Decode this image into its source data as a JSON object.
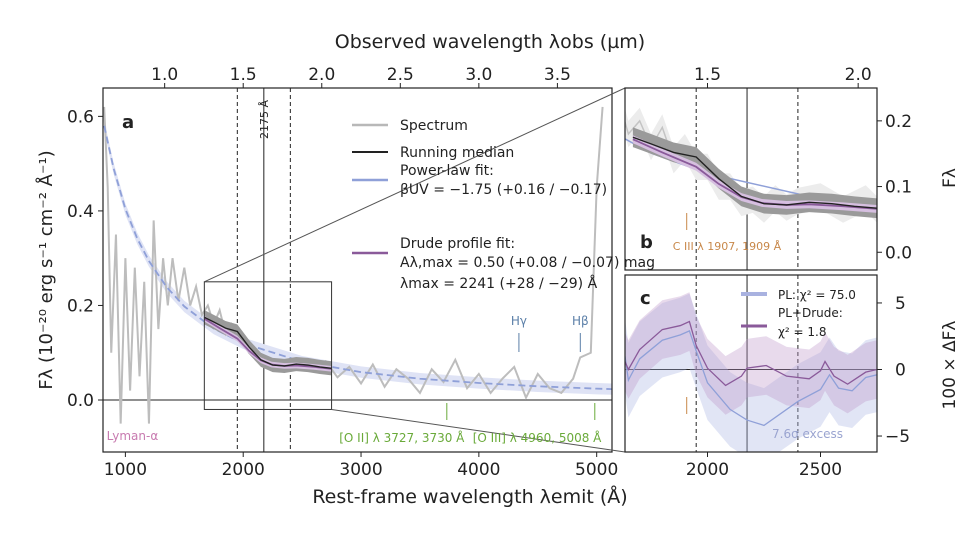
{
  "chart_data": [
    {
      "panel": "a",
      "type": "line",
      "xlabel": "Rest-frame wavelength λemit (Å)",
      "ylabel": "Fλ (10⁻²⁰ erg s⁻¹ cm⁻² Å⁻¹)",
      "top_xlabel": "Observed wavelength λobs (µm)",
      "xlim": [
        810,
        5130
      ],
      "ylim": [
        -0.11,
        0.66
      ],
      "xticks": [
        1000,
        2000,
        3000,
        4000,
        5000
      ],
      "yticks": [
        0.0,
        0.2,
        0.4,
        0.6
      ],
      "ytick_labels": [
        "0.0",
        "0.2",
        "0.4",
        "0.6"
      ],
      "top_xticks_um": [
        1.0,
        1.5,
        2.0,
        2.5,
        3.0,
        3.5
      ],
      "top_xtick_labels": [
        "1.0",
        "1.5",
        "2.0",
        "2.5",
        "3.0",
        "3.5"
      ],
      "obs_per_rest_factor": 7.5,
      "vlines": [
        {
          "x": 1950,
          "style": "dashed"
        },
        {
          "x": 2175,
          "style": "solid",
          "label": "2175 Å"
        },
        {
          "x": 2400,
          "style": "dashed"
        }
      ],
      "zoom_box": {
        "x": [
          1670,
          2750
        ],
        "y": [
          -0.02,
          0.25
        ]
      },
      "legend": {
        "placement": "top-center",
        "entries": [
          {
            "label": "Spectrum",
            "color": "#b8b8b8"
          },
          {
            "label": "Running median",
            "color": "#222222"
          },
          {
            "label": "Power-law fit:",
            "label2": "βUV = −1.75 (+0.16 / −0.17)",
            "color": "#8fa0d8"
          },
          {
            "label": "Drude profile fit:",
            "label2": "Aλ,max = 0.50 (+0.08 / −0.07) mag",
            "label3": "λmax = 2241 (+28 / −29) Å",
            "color": "#8a5a9a"
          }
        ]
      },
      "annotations": [
        {
          "text": "Lyman-α",
          "x": 1060,
          "color": "#c87bb0"
        },
        {
          "text": "Hγ",
          "x": 4340,
          "color": "#5b7fa8"
        },
        {
          "text": "Hβ",
          "x": 4861,
          "color": "#5b7fa8"
        },
        {
          "text": "[O II] λ 3727, 3730 Å",
          "x": 3728,
          "color": "#6aaa3a"
        },
        {
          "text": "[O III] λ 4960, 5008 Å",
          "x": 4984,
          "color": "#6aaa3a"
        }
      ],
      "spectrum": [
        [
          820,
          0.62
        ],
        [
          850,
          0.45
        ],
        [
          880,
          0.1
        ],
        [
          920,
          0.35
        ],
        [
          960,
          -0.05
        ],
        [
          1000,
          0.3
        ],
        [
          1040,
          0.02
        ],
        [
          1080,
          0.28
        ],
        [
          1120,
          0.05
        ],
        [
          1160,
          0.25
        ],
        [
          1200,
          -0.05
        ],
        [
          1240,
          0.38
        ],
        [
          1280,
          0.15
        ],
        [
          1320,
          0.3
        ],
        [
          1360,
          0.2
        ],
        [
          1400,
          0.3
        ],
        [
          1450,
          0.21
        ],
        [
          1500,
          0.28
        ],
        [
          1550,
          0.2
        ],
        [
          1600,
          0.24
        ],
        [
          1650,
          0.18
        ],
        [
          1700,
          0.2
        ],
        [
          1750,
          0.16
        ],
        [
          1800,
          0.19
        ],
        [
          1850,
          0.14
        ],
        [
          1900,
          0.16
        ],
        [
          1950,
          0.13
        ],
        [
          2000,
          0.13
        ],
        [
          2050,
          0.1
        ],
        [
          2100,
          0.1
        ],
        [
          2150,
          0.075
        ],
        [
          2200,
          0.08
        ],
        [
          2250,
          0.065
        ],
        [
          2300,
          0.082
        ],
        [
          2350,
          0.068
        ],
        [
          2400,
          0.078
        ],
        [
          2500,
          0.085
        ],
        [
          2600,
          0.065
        ],
        [
          2700,
          0.082
        ],
        [
          2800,
          0.048
        ],
        [
          2900,
          0.07
        ],
        [
          3000,
          0.035
        ],
        [
          3100,
          0.075
        ],
        [
          3200,
          0.028
        ],
        [
          3300,
          0.065
        ],
        [
          3400,
          0.045
        ],
        [
          3500,
          0.015
        ],
        [
          3600,
          0.065
        ],
        [
          3700,
          0.038
        ],
        [
          3800,
          0.085
        ],
        [
          3900,
          0.025
        ],
        [
          4000,
          0.055
        ],
        [
          4100,
          0.015
        ],
        [
          4200,
          0.045
        ],
        [
          4300,
          0.07
        ],
        [
          4400,
          0.005
        ],
        [
          4500,
          0.055
        ],
        [
          4600,
          0.025
        ],
        [
          4700,
          0.015
        ],
        [
          4800,
          0.045
        ],
        [
          4860,
          0.09
        ],
        [
          4950,
          0.1
        ],
        [
          5000,
          0.45
        ],
        [
          5050,
          0.62
        ]
      ],
      "running_median": [
        [
          1670,
          0.175
        ],
        [
          1750,
          0.165
        ],
        [
          1850,
          0.152
        ],
        [
          1950,
          0.145
        ],
        [
          2050,
          0.112
        ],
        [
          2150,
          0.085
        ],
        [
          2250,
          0.074
        ],
        [
          2350,
          0.072
        ],
        [
          2450,
          0.076
        ],
        [
          2550,
          0.074
        ],
        [
          2650,
          0.07
        ],
        [
          2750,
          0.067
        ]
      ],
      "power_law_fit": [
        [
          820,
          0.58
        ],
        [
          900,
          0.49
        ],
        [
          1000,
          0.404
        ],
        [
          1100,
          0.342
        ],
        [
          1200,
          0.294
        ],
        [
          1350,
          0.239
        ],
        [
          1500,
          0.198
        ],
        [
          1750,
          0.151
        ],
        [
          2000,
          0.12
        ],
        [
          2500,
          0.081
        ],
        [
          3000,
          0.059
        ],
        [
          3500,
          0.045
        ],
        [
          4000,
          0.036
        ],
        [
          4500,
          0.029
        ],
        [
          5000,
          0.024
        ],
        [
          5130,
          0.023
        ]
      ],
      "drude_fit": [
        [
          1670,
          0.172
        ],
        [
          1800,
          0.152
        ],
        [
          1950,
          0.13
        ],
        [
          2050,
          0.104
        ],
        [
          2150,
          0.084
        ],
        [
          2241,
          0.075
        ],
        [
          2350,
          0.072
        ],
        [
          2450,
          0.073
        ],
        [
          2600,
          0.07
        ],
        [
          2750,
          0.066
        ]
      ]
    },
    {
      "panel": "b",
      "type": "line",
      "ylabel": "Fλ",
      "xlim": [
        1635,
        2750
      ],
      "ylim": [
        -0.027,
        0.25
      ],
      "yticks": [
        0.0,
        0.1,
        0.2
      ],
      "ytick_labels": [
        "0.0",
        "0.1",
        "0.2"
      ],
      "top_xticks_um": [
        1.5,
        2.0
      ],
      "top_xtick_labels": [
        "1.5",
        "2.0"
      ],
      "annotations": [
        {
          "text": "C III λ 1907, 1909 Å",
          "x": 1908,
          "color": "#c8884a"
        }
      ]
    },
    {
      "panel": "c",
      "type": "line",
      "ylabel": "100 × ΔFλ",
      "xlim": [
        1635,
        2750
      ],
      "ylim": [
        -6.2,
        7.1
      ],
      "xticks": [
        2000,
        2500
      ],
      "yticks": [
        -5,
        0,
        5
      ],
      "ytick_labels": [
        "−5",
        "0",
        "5"
      ],
      "legend": {
        "placement": "top-right",
        "entries": [
          {
            "label": "PL: χ² = 75.0",
            "color": "#a9b2e0"
          },
          {
            "label": "PL+Drude:",
            "label2": "χ² = 1.8",
            "color": "#8a5a9a"
          }
        ]
      },
      "annotation": {
        "text": "7.6σ excess",
        "color": "#9aa4d0"
      },
      "series": [
        {
          "name": "PL: χ² = 75.0",
          "color": "#8fa0d8",
          "band": 2.8,
          "values": [
            [
              1635,
              1
            ],
            [
              1650,
              -0.8
            ],
            [
              1700,
              0.8
            ],
            [
              1800,
              2.2
            ],
            [
              1880,
              2.6
            ],
            [
              1920,
              2.9
            ],
            [
              1950,
              1.4
            ],
            [
              2000,
              -1
            ],
            [
              2100,
              -3
            ],
            [
              2175,
              -3.8
            ],
            [
              2250,
              -4.2
            ],
            [
              2400,
              -2.4
            ],
            [
              2500,
              -1.5
            ],
            [
              2540,
              -0.4
            ],
            [
              2580,
              -1.4
            ],
            [
              2640,
              -1.6
            ],
            [
              2700,
              -0.6
            ],
            [
              2750,
              -0.4
            ]
          ]
        },
        {
          "name": "PL+Drude",
          "color": "#8a5a9a",
          "band": 2.2,
          "values": [
            [
              1635,
              0.6
            ],
            [
              1650,
              0
            ],
            [
              1700,
              1.5
            ],
            [
              1800,
              3
            ],
            [
              1880,
              3.3
            ],
            [
              1920,
              3.6
            ],
            [
              1950,
              1.8
            ],
            [
              2000,
              0.1
            ],
            [
              2080,
              -1.2
            ],
            [
              2150,
              -0.5
            ],
            [
              2175,
              0.1
            ],
            [
              2260,
              0.3
            ],
            [
              2350,
              -0.5
            ],
            [
              2450,
              -0.7
            ],
            [
              2500,
              -0.1
            ],
            [
              2520,
              0.6
            ],
            [
              2560,
              -0.5
            ],
            [
              2620,
              -1.1
            ],
            [
              2700,
              -0.2
            ],
            [
              2750,
              0
            ]
          ]
        }
      ]
    }
  ]
}
